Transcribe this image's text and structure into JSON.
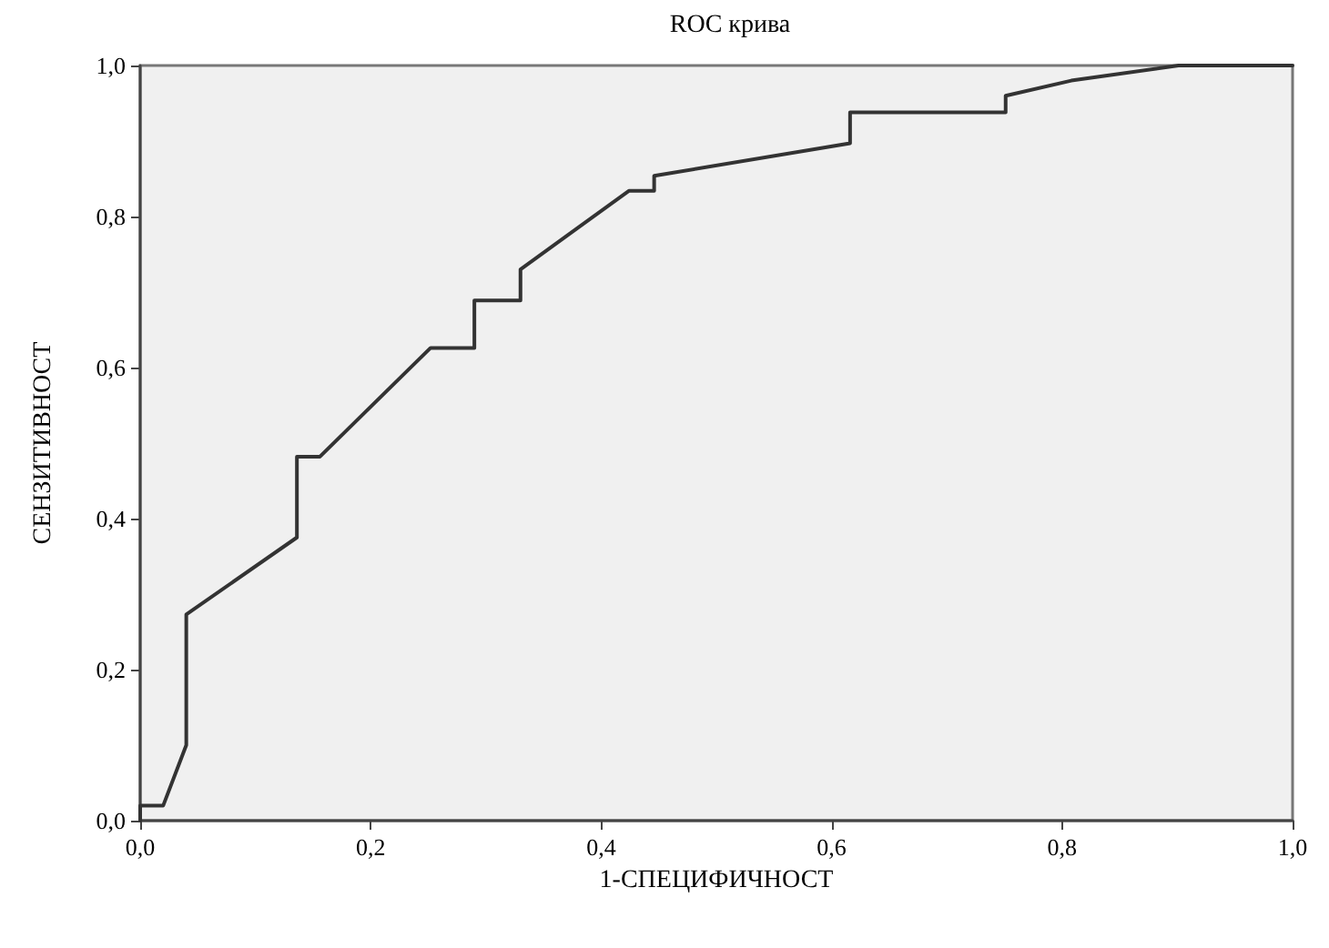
{
  "chart_data": {
    "type": "line",
    "title": "ROC крива",
    "xlabel": "1-СПЕЦИФИЧНОСТ",
    "ylabel": "СЕНЗИТИВНОСТ",
    "x": [
      0,
      0,
      0.02,
      0.04,
      0.04,
      0.136,
      0.136,
      0.156,
      0.252,
      0.29,
      0.29,
      0.33,
      0.33,
      0.424,
      0.446,
      0.446,
      0.616,
      0.616,
      0.751,
      0.751,
      0.808,
      0.901,
      1
    ],
    "series": [
      {
        "color": "#333333",
        "values": [
          0,
          0.02,
          0.02,
          0.1,
          0.273,
          0.375,
          0.482,
          0.482,
          0.626,
          0.626,
          0.689,
          0.689,
          0.73,
          0.834,
          0.834,
          0.854,
          0.897,
          0.938,
          0.938,
          0.96,
          0.98,
          1,
          1
        ]
      }
    ],
    "xlim": [
      0,
      1
    ],
    "ylim": [
      0,
      1
    ],
    "xticks": [
      {
        "value": 0,
        "label": "0,0"
      },
      {
        "value": 0.2,
        "label": "0,2"
      },
      {
        "value": 0.4,
        "label": "0,4"
      },
      {
        "value": 0.6,
        "label": "0,6"
      },
      {
        "value": 0.8,
        "label": "0,8"
      },
      {
        "value": 1,
        "label": "1,0"
      }
    ],
    "yticks": [
      {
        "value": 0,
        "label": "0,0"
      },
      {
        "value": 0.2,
        "label": "0,2"
      },
      {
        "value": 0.4,
        "label": "0,4"
      },
      {
        "value": 0.6,
        "label": "0,6"
      },
      {
        "value": 0.8,
        "label": "0,8"
      },
      {
        "value": 1,
        "label": "1,0"
      }
    ],
    "grid": false,
    "marker": "none",
    "line_style": "solid"
  }
}
